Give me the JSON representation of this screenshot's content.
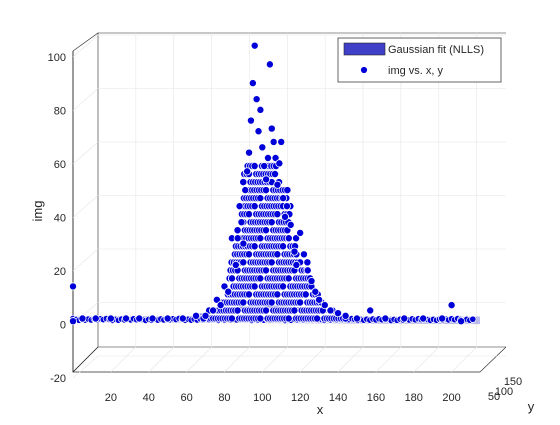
{
  "chart_data": {
    "type": "scatter",
    "view": "3d",
    "title": "",
    "xlabel": "x",
    "ylabel": "y",
    "zlabel": "img",
    "xlim": [
      0,
      215
    ],
    "zlim": [
      -20,
      100
    ],
    "x_ticks": [
      20,
      40,
      60,
      80,
      100,
      120,
      140,
      160,
      180,
      200
    ],
    "y_ticks": [
      50,
      100,
      150
    ],
    "z_ticks": [
      -20,
      0,
      20,
      40,
      60,
      80,
      100
    ],
    "grid": true,
    "legend_position": "top-right",
    "legend": [
      {
        "label": "Gaussian fit (NLLS)",
        "marker": "surface",
        "color": "#3f3fc8"
      },
      {
        "label": "img vs. x, y",
        "marker": "dot",
        "color": "#0000d8"
      }
    ],
    "series": [
      {
        "name": "img vs. x, y",
        "color": "#0000d8",
        "note_values": "points sampled along x (data units) with img value (data units)",
        "points": [
          [
            0,
            12
          ],
          [
            0,
            -1
          ],
          [
            5,
            0
          ],
          [
            12,
            0
          ],
          [
            20,
            0
          ],
          [
            28,
            0
          ],
          [
            35,
            0
          ],
          [
            42,
            0
          ],
          [
            50,
            0
          ],
          [
            58,
            0
          ],
          [
            65,
            1
          ],
          [
            70,
            1
          ],
          [
            74,
            3
          ],
          [
            76,
            7
          ],
          [
            78,
            5
          ],
          [
            80,
            12
          ],
          [
            82,
            10
          ],
          [
            84,
            15
          ],
          [
            86,
            20
          ],
          [
            87,
            30
          ],
          [
            88,
            42
          ],
          [
            89,
            36
          ],
          [
            90,
            28
          ],
          [
            91,
            48
          ],
          [
            92,
            55
          ],
          [
            93,
            62
          ],
          [
            94,
            74
          ],
          [
            95,
            88
          ],
          [
            96,
            102
          ],
          [
            97,
            82
          ],
          [
            98,
            70
          ],
          [
            99,
            78
          ],
          [
            100,
            64
          ],
          [
            101,
            57
          ],
          [
            102,
            52
          ],
          [
            103,
            60
          ],
          [
            104,
            95
          ],
          [
            105,
            71
          ],
          [
            106,
            66
          ],
          [
            107,
            60
          ],
          [
            108,
            50
          ],
          [
            109,
            58
          ],
          [
            110,
            66
          ],
          [
            111,
            45
          ],
          [
            112,
            38
          ],
          [
            113,
            42
          ],
          [
            114,
            30
          ],
          [
            115,
            35
          ],
          [
            117,
            25
          ],
          [
            118,
            20
          ],
          [
            120,
            32
          ],
          [
            122,
            24
          ],
          [
            124,
            18
          ],
          [
            126,
            14
          ],
          [
            128,
            10
          ],
          [
            130,
            7
          ],
          [
            133,
            5
          ],
          [
            136,
            3
          ],
          [
            140,
            2
          ],
          [
            144,
            1
          ],
          [
            150,
            0
          ],
          [
            157,
            3
          ],
          [
            165,
            0
          ],
          [
            175,
            0
          ],
          [
            185,
            0
          ],
          [
            195,
            0
          ],
          [
            200,
            5
          ],
          [
            205,
            -1
          ]
        ]
      }
    ]
  }
}
